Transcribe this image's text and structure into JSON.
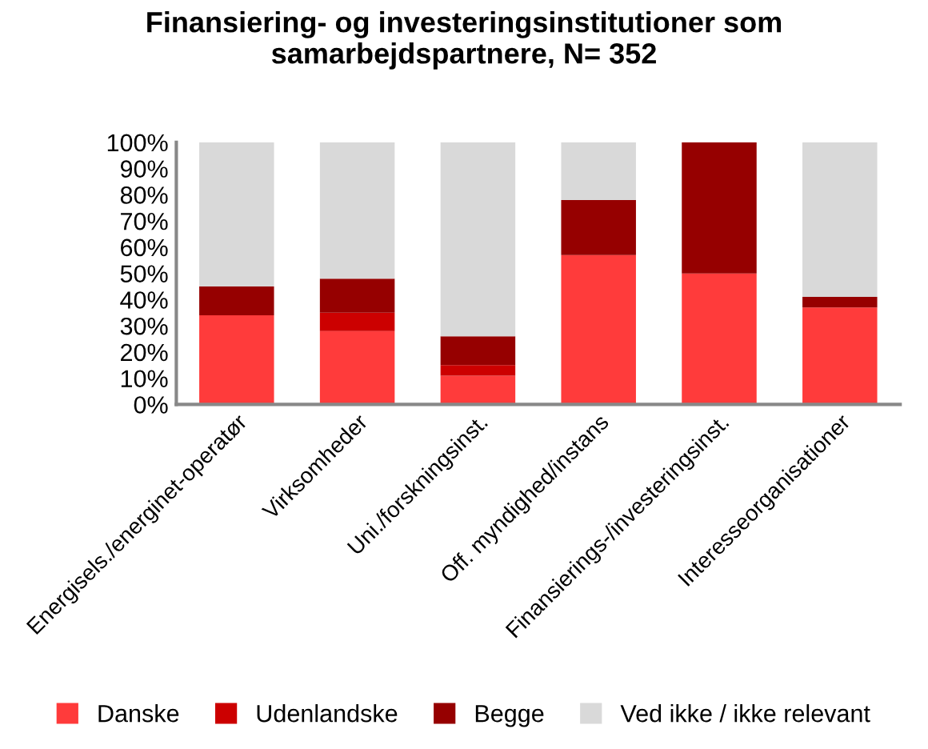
{
  "chart_data": {
    "type": "bar",
    "stacked": true,
    "title": "Finansiering- og investeringsinstitutioner som samarbejdspartnere, N= 352",
    "categories": [
      "Energisels./energinet-operatør",
      "Virksomheder",
      "Uni./forskningsinst.",
      "Off. myndighed/instans",
      "Finansierings-/investeringsinst.",
      "Interesseorganisationer"
    ],
    "series": [
      {
        "name": "Danske",
        "color": "#ff3b3b",
        "values": [
          34,
          28,
          11,
          57,
          50,
          37
        ]
      },
      {
        "name": "Udenlandske",
        "color": "#cc0000",
        "values": [
          0,
          7,
          4,
          0,
          0,
          0
        ]
      },
      {
        "name": "Begge",
        "color": "#960000",
        "values": [
          11,
          13,
          11,
          21,
          50,
          4
        ]
      },
      {
        "name": "Ved ikke / ikke relevant",
        "color": "#d9d9d9",
        "values": [
          55,
          52,
          74,
          22,
          0,
          59
        ]
      }
    ],
    "ylim": [
      0,
      100
    ],
    "yticks": [
      {
        "value": 0,
        "label": "0%"
      },
      {
        "value": 10,
        "label": "10%"
      },
      {
        "value": 20,
        "label": "20%"
      },
      {
        "value": 30,
        "label": "30%"
      },
      {
        "value": 40,
        "label": "40%"
      },
      {
        "value": 50,
        "label": "50%"
      },
      {
        "value": 60,
        "label": "60%"
      },
      {
        "value": 70,
        "label": "70%"
      },
      {
        "value": 80,
        "label": "80%"
      },
      {
        "value": 90,
        "label": "90%"
      },
      {
        "value": 100,
        "label": "100%"
      }
    ],
    "grid": false,
    "legend": "bottom"
  }
}
